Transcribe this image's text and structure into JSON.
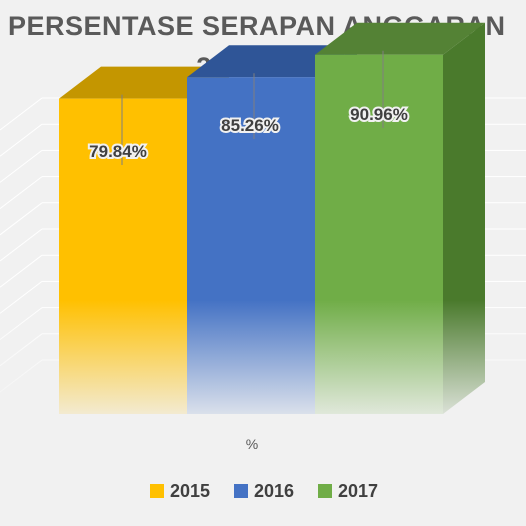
{
  "chart_data": {
    "type": "bar",
    "title_lines": [
      "PERSENTASE SERAPAN ANGGARAN",
      "2014-2017"
    ],
    "xlabel": "%",
    "ylabel": "",
    "categories": [
      "%"
    ],
    "series": [
      {
        "name": "2015",
        "values": [
          79.84
        ],
        "label": "79.84%",
        "color": "#ffc000",
        "side": "#c49000",
        "top": "#c49600"
      },
      {
        "name": "2016",
        "values": [
          85.26
        ],
        "label": "85.26%",
        "color": "#4472c4",
        "side": "#2f5597",
        "top": "#2f5597"
      },
      {
        "name": "2017",
        "values": [
          90.96
        ],
        "label": "90.96%",
        "color": "#70ad47",
        "side": "#4a7a2c",
        "top": "#548235"
      }
    ],
    "grid": true,
    "legend_position": "bottom"
  },
  "colors": {
    "background": "#f1f1f1",
    "title": "#5a5a5a",
    "grid": "#ffffff",
    "label": "#404040"
  }
}
